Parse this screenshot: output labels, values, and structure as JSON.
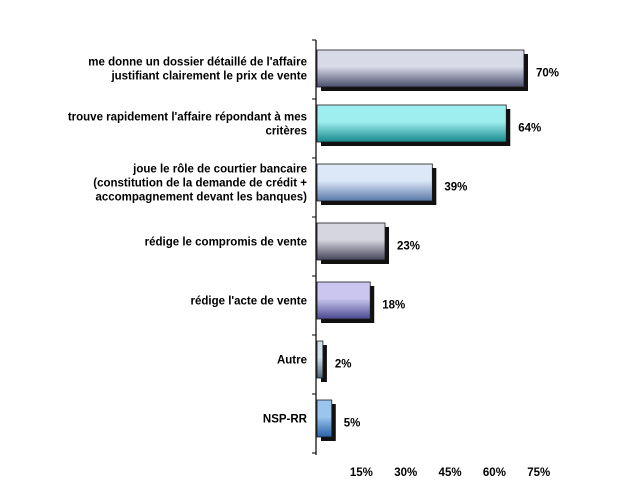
{
  "chart_data": {
    "type": "bar",
    "orientation": "horizontal",
    "title": "",
    "xlabel": "",
    "ylabel": "",
    "xlim": [
      0,
      80
    ],
    "grid": false,
    "legend": "none",
    "ticks": [
      {
        "value": 15,
        "label": "15%"
      },
      {
        "value": 30,
        "label": "30%"
      },
      {
        "value": 45,
        "label": "45%"
      },
      {
        "value": 60,
        "label": "60%"
      },
      {
        "value": 75,
        "label": "75%"
      }
    ],
    "categories": [
      [
        "me donne un dossier détaillé de l'affaire",
        "justifiant clairement le prix de vente"
      ],
      [
        "trouve rapidement l'affaire répondant à mes",
        "critères"
      ],
      [
        "joue le rôle de courtier bancaire",
        "(constitution de la demande de crédit +",
        "accompagnement devant les banques)"
      ],
      [
        "rédige le compromis de vente"
      ],
      [
        "rédige l'acte de vente"
      ],
      [
        "Autre"
      ],
      [
        "NSP-RR"
      ]
    ],
    "values": [
      70,
      64,
      39,
      23,
      18,
      2,
      5
    ],
    "value_labels": [
      "70%",
      "64%",
      "39%",
      "23%",
      "18%",
      "2%",
      "5%"
    ],
    "bar_colors": [
      [
        "#4c4f6e",
        "#d8dae8"
      ],
      [
        "#178a8e",
        "#9eeeef"
      ],
      [
        "#5878a8",
        "#dce8f8"
      ],
      [
        "#45455a",
        "#d6d6e0"
      ],
      [
        "#4a4892",
        "#cac6ef"
      ],
      [
        "#4a6478",
        "#d0e0e8"
      ],
      [
        "#2a62a8",
        "#9ac6ee"
      ]
    ]
  }
}
